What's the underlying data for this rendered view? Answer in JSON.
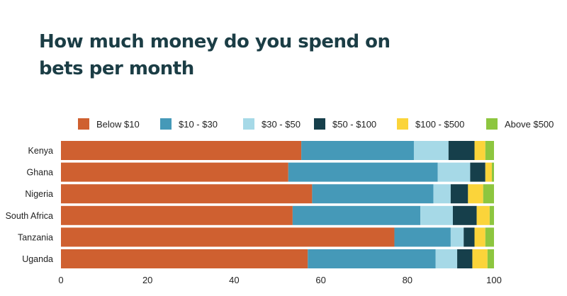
{
  "chart_data": {
    "type": "bar",
    "orientation": "horizontal",
    "stacked": true,
    "title_lines": [
      "How much money do you spend on",
      "bets per month"
    ],
    "categories": [
      "Kenya",
      "Ghana",
      "Nigeria",
      "South Africa",
      "Tanzania",
      "Uganda"
    ],
    "series": [
      {
        "name": "Below $10",
        "color": "#cf6030",
        "values": [
          55.5,
          52.5,
          58.0,
          53.5,
          77.0,
          57.0
        ]
      },
      {
        "name": "$10 - $30",
        "color": "#4599b8",
        "values": [
          26.0,
          34.5,
          28.0,
          29.5,
          13.0,
          29.5
        ]
      },
      {
        "name": "$30 - $50",
        "color": "#a6d9e7",
        "values": [
          8.0,
          7.5,
          4.0,
          7.5,
          3.0,
          5.0
        ]
      },
      {
        "name": "$50 - $100",
        "color": "#163f4b",
        "values": [
          6.0,
          3.5,
          4.0,
          5.5,
          2.5,
          3.5
        ]
      },
      {
        "name": "$100 - $500",
        "color": "#fbd43a",
        "values": [
          2.5,
          1.5,
          3.5,
          3.0,
          2.5,
          3.5
        ]
      },
      {
        "name": "Above $500",
        "color": "#8dc63f",
        "values": [
          2.0,
          0.5,
          2.5,
          1.0,
          2.0,
          1.5
        ]
      }
    ],
    "xlim": [
      0,
      100
    ],
    "xticks": [
      0,
      20,
      40,
      60,
      80,
      100
    ],
    "legend_position": "top",
    "grid": false
  }
}
